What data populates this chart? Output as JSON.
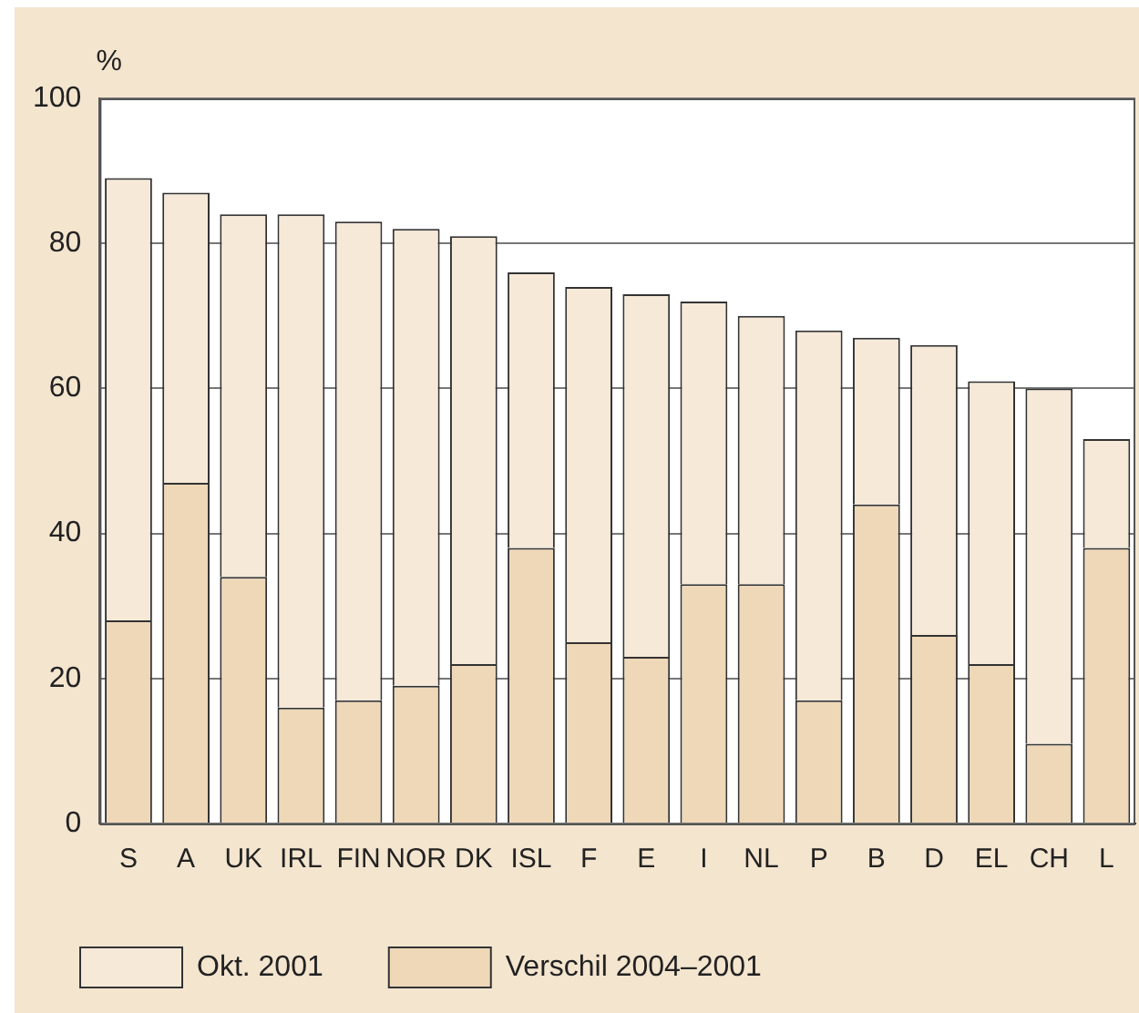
{
  "chart_data": {
    "type": "bar",
    "stacked": true,
    "ylabel": "%",
    "categories": [
      "S",
      "A",
      "UK",
      "IRL",
      "FIN",
      "NOR",
      "DK",
      "ISL",
      "F",
      "E",
      "I",
      "NL",
      "P",
      "B",
      "D",
      "EL",
      "CH",
      "L"
    ],
    "series": [
      {
        "name": "Verschil 2004–2001",
        "color": "#efd8b8",
        "values": [
          28,
          47,
          34,
          16,
          17,
          19,
          22,
          38,
          25,
          23,
          33,
          33,
          17,
          44,
          26,
          22,
          11,
          38
        ]
      },
      {
        "name": "Okt. 2001",
        "color": "#f6e9d8",
        "values": [
          61,
          40,
          50,
          68,
          66,
          63,
          59,
          38,
          49,
          50,
          39,
          37,
          51,
          23,
          40,
          39,
          49,
          15
        ]
      }
    ],
    "ylim": [
      0,
      100
    ],
    "yticks": [
      0,
      20,
      40,
      60,
      80,
      100
    ],
    "grid": "y",
    "legend": "bottom"
  }
}
